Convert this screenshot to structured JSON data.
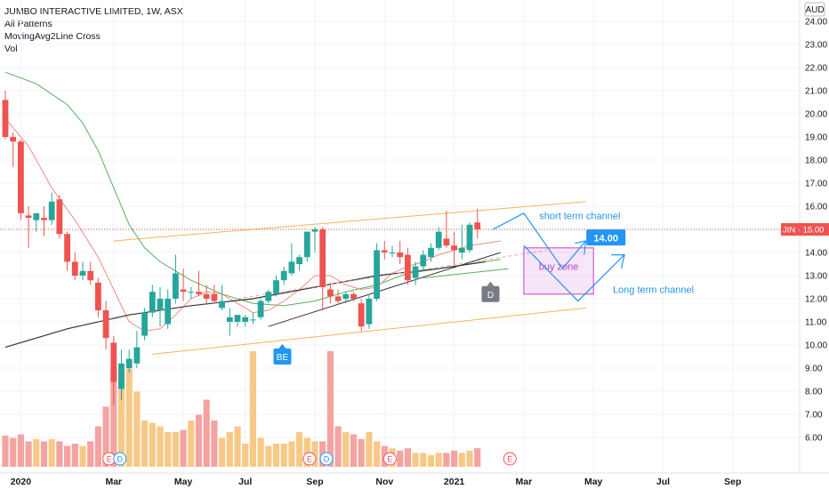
{
  "chart_data": {
    "type": "candlestick",
    "title": "JUMBO INTERACTIVE LIMITED, 1W, ASX",
    "indicators": [
      "All Patterns",
      "MovingAvg2Line Cross",
      "Vol"
    ],
    "currency": "AUD",
    "ticker": "JIN",
    "last_price": "15.00",
    "ylim": [
      5.5,
      24
    ],
    "y_ticks": [
      "6.00",
      "7.00",
      "8.00",
      "9.00",
      "10.00",
      "11.00",
      "12.00",
      "13.00",
      "14.00",
      "15.00",
      "16.00",
      "17.00",
      "18.00",
      "19.00",
      "20.00",
      "21.00",
      "22.00",
      "23.00",
      "24.00"
    ],
    "x_ticks": [
      "2020",
      "Mar",
      "May",
      "Jul",
      "Sep",
      "Nov",
      "2021",
      "Mar",
      "May",
      "Jul",
      "Sep"
    ],
    "candles": [
      {
        "o": 20.6,
        "h": 21.0,
        "l": 18.9,
        "c": 19.0
      },
      {
        "o": 19.0,
        "h": 19.2,
        "l": 17.7,
        "c": 18.8
      },
      {
        "o": 18.8,
        "h": 18.9,
        "l": 15.4,
        "c": 15.7
      },
      {
        "o": 15.6,
        "h": 16.0,
        "l": 14.2,
        "c": 15.5
      },
      {
        "o": 15.4,
        "h": 15.7,
        "l": 14.9,
        "c": 15.7
      },
      {
        "o": 15.5,
        "h": 16.0,
        "l": 14.7,
        "c": 15.4
      },
      {
        "o": 15.4,
        "h": 16.6,
        "l": 15.2,
        "c": 16.2
      },
      {
        "o": 16.3,
        "h": 16.5,
        "l": 14.6,
        "c": 14.8
      },
      {
        "o": 14.8,
        "h": 14.9,
        "l": 13.2,
        "c": 13.6
      },
      {
        "o": 13.6,
        "h": 14.0,
        "l": 12.8,
        "c": 13.0
      },
      {
        "o": 13.0,
        "h": 13.6,
        "l": 12.8,
        "c": 13.2
      },
      {
        "o": 13.2,
        "h": 13.6,
        "l": 12.6,
        "c": 12.8
      },
      {
        "o": 12.7,
        "h": 12.9,
        "l": 11.2,
        "c": 11.5
      },
      {
        "o": 11.5,
        "h": 11.9,
        "l": 9.8,
        "c": 10.3
      },
      {
        "o": 10.1,
        "h": 10.4,
        "l": 7.4,
        "c": 8.4
      },
      {
        "o": 8.1,
        "h": 9.8,
        "l": 7.6,
        "c": 9.2
      },
      {
        "o": 9.0,
        "h": 9.8,
        "l": 8.8,
        "c": 9.4
      },
      {
        "o": 9.2,
        "h": 10.6,
        "l": 9.0,
        "c": 9.9
      },
      {
        "o": 10.4,
        "h": 11.6,
        "l": 10.2,
        "c": 11.4
      },
      {
        "o": 11.4,
        "h": 12.6,
        "l": 11.2,
        "c": 12.3
      },
      {
        "o": 11.5,
        "h": 12.5,
        "l": 10.8,
        "c": 12.0
      },
      {
        "o": 10.9,
        "h": 12.4,
        "l": 10.7,
        "c": 12.0
      },
      {
        "o": 12.0,
        "h": 13.9,
        "l": 11.8,
        "c": 13.1
      },
      {
        "o": 12.4,
        "h": 13.3,
        "l": 11.9,
        "c": 12.3
      },
      {
        "o": 12.3,
        "h": 12.5,
        "l": 12.0,
        "c": 12.3
      },
      {
        "o": 12.3,
        "h": 13.2,
        "l": 12.1,
        "c": 12.2
      },
      {
        "o": 12.2,
        "h": 12.6,
        "l": 11.8,
        "c": 12.0
      },
      {
        "o": 12.2,
        "h": 12.6,
        "l": 11.8,
        "c": 11.9
      },
      {
        "o": 11.6,
        "h": 12.6,
        "l": 11.5,
        "c": 11.9
      },
      {
        "o": 11.0,
        "h": 11.6,
        "l": 10.4,
        "c": 11.2
      },
      {
        "o": 11.0,
        "h": 11.3,
        "l": 10.8,
        "c": 11.3
      },
      {
        "o": 11.0,
        "h": 11.3,
        "l": 10.8,
        "c": 11.2
      },
      {
        "o": 11.1,
        "h": 11.4,
        "l": 10.9,
        "c": 11.1
      },
      {
        "o": 11.2,
        "h": 12.0,
        "l": 11.1,
        "c": 11.9
      },
      {
        "o": 11.9,
        "h": 12.4,
        "l": 11.8,
        "c": 12.3
      },
      {
        "o": 12.2,
        "h": 13.0,
        "l": 12.1,
        "c": 12.8
      },
      {
        "o": 12.8,
        "h": 13.4,
        "l": 12.6,
        "c": 13.2
      },
      {
        "o": 13.1,
        "h": 14.4,
        "l": 13.0,
        "c": 13.6
      },
      {
        "o": 13.5,
        "h": 13.9,
        "l": 13.2,
        "c": 13.8
      },
      {
        "o": 13.8,
        "h": 14.9,
        "l": 13.6,
        "c": 14.9
      },
      {
        "o": 14.9,
        "h": 15.1,
        "l": 14.0,
        "c": 15.0
      },
      {
        "o": 15.0,
        "h": 15.1,
        "l": 11.5,
        "c": 12.5
      },
      {
        "o": 12.4,
        "h": 12.7,
        "l": 11.8,
        "c": 12.1
      },
      {
        "o": 12.1,
        "h": 12.4,
        "l": 11.8,
        "c": 11.9
      },
      {
        "o": 12.0,
        "h": 12.3,
        "l": 11.8,
        "c": 12.2
      },
      {
        "o": 12.2,
        "h": 12.3,
        "l": 11.9,
        "c": 12.0
      },
      {
        "o": 11.8,
        "h": 12.0,
        "l": 10.6,
        "c": 10.8
      },
      {
        "o": 10.9,
        "h": 12.2,
        "l": 10.7,
        "c": 12.0
      },
      {
        "o": 12.0,
        "h": 14.4,
        "l": 11.9,
        "c": 14.1
      },
      {
        "o": 14.1,
        "h": 14.5,
        "l": 13.7,
        "c": 14.0
      },
      {
        "o": 14.0,
        "h": 14.3,
        "l": 13.8,
        "c": 14.0
      },
      {
        "o": 14.0,
        "h": 14.5,
        "l": 13.5,
        "c": 13.8
      },
      {
        "o": 13.9,
        "h": 14.2,
        "l": 12.6,
        "c": 12.8
      },
      {
        "o": 12.9,
        "h": 13.6,
        "l": 12.6,
        "c": 13.4
      },
      {
        "o": 13.4,
        "h": 14.1,
        "l": 13.2,
        "c": 13.9
      },
      {
        "o": 13.8,
        "h": 14.4,
        "l": 13.6,
        "c": 14.2
      },
      {
        "o": 14.2,
        "h": 15.1,
        "l": 14.1,
        "c": 14.9
      },
      {
        "o": 14.6,
        "h": 15.8,
        "l": 14.2,
        "c": 14.3
      },
      {
        "o": 14.3,
        "h": 14.9,
        "l": 13.5,
        "c": 14.1
      },
      {
        "o": 14.0,
        "h": 15.2,
        "l": 13.7,
        "c": 14.2
      },
      {
        "o": 14.1,
        "h": 15.3,
        "l": 14.0,
        "c": 15.2
      },
      {
        "o": 15.3,
        "h": 15.9,
        "l": 14.6,
        "c": 15.0
      }
    ],
    "volume_heights": [
      0.27,
      0.25,
      0.28,
      0.22,
      0.24,
      0.22,
      0.24,
      0.22,
      0.18,
      0.2,
      0.18,
      0.22,
      0.35,
      0.52,
      0.85,
      0.85,
      0.85,
      0.65,
      0.4,
      0.38,
      0.35,
      0.3,
      0.3,
      0.32,
      0.4,
      0.45,
      0.58,
      0.4,
      0.25,
      0.3,
      0.35,
      0.2,
      1.0,
      0.25,
      0.18,
      0.2,
      0.2,
      0.22,
      0.3,
      0.25,
      0.22,
      0.22,
      1.0,
      0.35,
      0.3,
      0.28,
      0.24,
      0.3,
      0.22,
      0.18,
      0.16,
      0.14,
      0.16,
      0.12,
      0.12,
      0.1,
      0.12,
      0.12,
      0.14,
      0.12,
      0.14,
      0.16
    ],
    "x_ticks_candle_index": [
      2,
      14,
      23,
      31,
      40,
      49,
      58,
      67,
      76,
      85,
      94
    ],
    "annotations": {
      "short_term_channel": "short term channel",
      "long_term_channel": "Long term channel",
      "buy_zone": "buy zone",
      "target_price": "14.00",
      "pattern_be": "BE",
      "pattern_d": "D",
      "event_e": "E",
      "event_d": "D"
    },
    "colors": {
      "up": "#26a69a",
      "down": "#ef5350",
      "vol_up": "#f7c986",
      "vol_down": "#f5a3a1",
      "ma_fast": "#f28b82",
      "ma_slow": "#57b05a",
      "trend": "#333333",
      "channel": "#f7b35a",
      "projection": "#2196f3",
      "buy_zone": "#c341c7",
      "price_line": "#ef5350"
    }
  }
}
